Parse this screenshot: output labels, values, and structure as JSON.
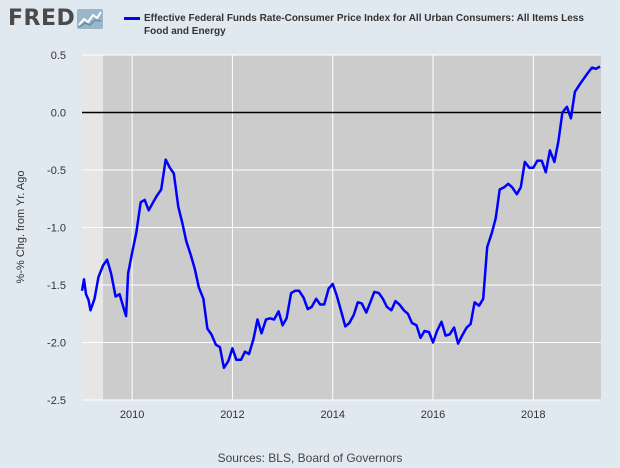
{
  "header": {
    "logo_text": "FRED",
    "logo_icon": "line-chart-icon"
  },
  "chart_data": {
    "type": "line",
    "title": "",
    "legend": [
      "Effective Federal Funds Rate-Consumer Price Index for All Urban Consumers: All Items Less Food and Energy"
    ],
    "legend_placement": "top",
    "ylabel": "%-% Chg. from Yr. Ago",
    "xlabel": "",
    "ylim": [
      -2.5,
      0.5
    ],
    "y_ticks": [
      0.5,
      0.0,
      -0.5,
      -1.0,
      -1.5,
      -2.0,
      -2.5
    ],
    "y_tick_labels": [
      "0.5",
      "0.0",
      "-0.5",
      "-1.0",
      "-1.5",
      "-2.0",
      "-2.5"
    ],
    "xlim": [
      2009.0,
      2019.35
    ],
    "x_ticks": [
      2010,
      2012,
      2014,
      2016,
      2018
    ],
    "x_tick_labels": [
      "2010",
      "2012",
      "2014",
      "2016",
      "2018"
    ],
    "grid": true,
    "zero_line": true,
    "recession_shading": [
      [
        2009.0,
        2009.42
      ]
    ],
    "series": [
      {
        "color": "#0000ff",
        "x": [
          2009.0,
          2009.04,
          2009.08,
          2009.13,
          2009.17,
          2009.25,
          2009.33,
          2009.42,
          2009.5,
          2009.58,
          2009.67,
          2009.75,
          2009.83,
          2009.88,
          2009.92,
          2010.0,
          2010.08,
          2010.17,
          2010.25,
          2010.33,
          2010.42,
          2010.5,
          2010.58,
          2010.67,
          2010.75,
          2010.83,
          2010.92,
          2011.0,
          2011.08,
          2011.17,
          2011.25,
          2011.33,
          2011.42,
          2011.5,
          2011.58,
          2011.67,
          2011.75,
          2011.83,
          2011.92,
          2012.0,
          2012.08,
          2012.17,
          2012.25,
          2012.33,
          2012.42,
          2012.5,
          2012.58,
          2012.67,
          2012.75,
          2012.83,
          2012.92,
          2013.0,
          2013.08,
          2013.17,
          2013.25,
          2013.33,
          2013.42,
          2013.5,
          2013.58,
          2013.67,
          2013.75,
          2013.83,
          2013.92,
          2014.0,
          2014.08,
          2014.17,
          2014.25,
          2014.33,
          2014.42,
          2014.5,
          2014.58,
          2014.67,
          2014.75,
          2014.83,
          2014.92,
          2015.0,
          2015.08,
          2015.17,
          2015.25,
          2015.33,
          2015.42,
          2015.5,
          2015.58,
          2015.67,
          2015.75,
          2015.83,
          2015.92,
          2016.0,
          2016.08,
          2016.17,
          2016.25,
          2016.33,
          2016.42,
          2016.5,
          2016.58,
          2016.67,
          2016.75,
          2016.83,
          2016.92,
          2017.0,
          2017.08,
          2017.17,
          2017.25,
          2017.33,
          2017.42,
          2017.5,
          2017.58,
          2017.67,
          2017.75,
          2017.83,
          2017.92,
          2018.0,
          2018.08,
          2018.17,
          2018.25,
          2018.33,
          2018.42,
          2018.5,
          2018.58,
          2018.67,
          2018.75,
          2018.83,
          2018.92,
          2019.0,
          2019.08,
          2019.17,
          2019.25,
          2019.33
        ],
        "y": [
          -1.55,
          -1.45,
          -1.58,
          -1.63,
          -1.72,
          -1.62,
          -1.43,
          -1.33,
          -1.28,
          -1.4,
          -1.6,
          -1.58,
          -1.7,
          -1.77,
          -1.4,
          -1.22,
          -1.05,
          -0.78,
          -0.76,
          -0.85,
          -0.78,
          -0.72,
          -0.67,
          -0.41,
          -0.48,
          -0.53,
          -0.82,
          -0.96,
          -1.12,
          -1.24,
          -1.36,
          -1.52,
          -1.62,
          -1.88,
          -1.93,
          -2.02,
          -2.04,
          -2.22,
          -2.16,
          -2.05,
          -2.15,
          -2.15,
          -2.08,
          -2.1,
          -1.97,
          -1.8,
          -1.92,
          -1.8,
          -1.79,
          -1.8,
          -1.73,
          -1.85,
          -1.79,
          -1.57,
          -1.55,
          -1.55,
          -1.61,
          -1.71,
          -1.69,
          -1.62,
          -1.67,
          -1.67,
          -1.53,
          -1.49,
          -1.59,
          -1.73,
          -1.86,
          -1.83,
          -1.76,
          -1.65,
          -1.66,
          -1.74,
          -1.65,
          -1.56,
          -1.57,
          -1.62,
          -1.69,
          -1.72,
          -1.64,
          -1.67,
          -1.72,
          -1.75,
          -1.83,
          -1.85,
          -1.96,
          -1.9,
          -1.91,
          -2.0,
          -1.9,
          -1.82,
          -1.94,
          -1.93,
          -1.87,
          -2.01,
          -1.94,
          -1.87,
          -1.84,
          -1.65,
          -1.68,
          -1.62,
          -1.17,
          -1.05,
          -0.92,
          -0.67,
          -0.65,
          -0.62,
          -0.65,
          -0.71,
          -0.65,
          -0.43,
          -0.48,
          -0.48,
          -0.42,
          -0.42,
          -0.52,
          -0.33,
          -0.43,
          -0.25,
          0.0,
          0.05,
          -0.05,
          0.18,
          0.24,
          0.29,
          0.34,
          0.39,
          0.38,
          0.4
        ]
      }
    ]
  },
  "footer": {
    "source": "Sources: BLS, Board of Governors"
  }
}
